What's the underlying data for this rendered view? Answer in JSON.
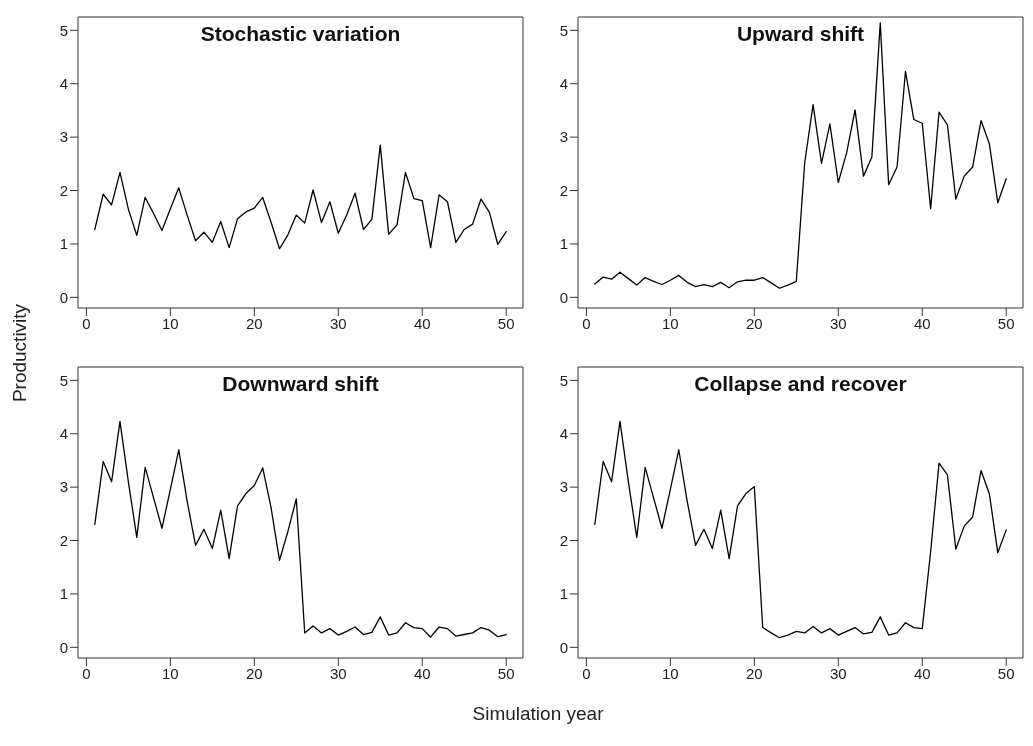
{
  "chart_data": [
    {
      "type": "line",
      "title": "Stochastic variation",
      "ylabel": "Productivity",
      "x": [
        1,
        2,
        3,
        4,
        5,
        6,
        7,
        8,
        9,
        10,
        11,
        12,
        13,
        14,
        15,
        16,
        17,
        18,
        19,
        20,
        21,
        22,
        23,
        24,
        25,
        26,
        27,
        28,
        29,
        30,
        31,
        32,
        33,
        34,
        35,
        36,
        37,
        38,
        39,
        40,
        41,
        42,
        43,
        44,
        45,
        46,
        47,
        48,
        49,
        50
      ],
      "xlim": [
        -1,
        52
      ],
      "ylim": [
        -0.2,
        5.25
      ],
      "xticks": [
        0,
        10,
        20,
        30,
        40,
        50
      ],
      "yticks": [
        0,
        1,
        2,
        3,
        4,
        5
      ],
      "marker": "none",
      "line_style": "solid",
      "series": [
        {
          "color": "#000000",
          "values": [
            1.27,
            1.93,
            1.73,
            2.34,
            1.65,
            1.16,
            1.87,
            1.57,
            1.25,
            1.66,
            2.05,
            1.54,
            1.06,
            1.22,
            1.03,
            1.42,
            0.93,
            1.47,
            1.6,
            1.67,
            1.87,
            1.4,
            0.91,
            1.17,
            1.54,
            1.39,
            2.01,
            1.4,
            1.79,
            1.2,
            1.54,
            1.95,
            1.27,
            1.46,
            2.85,
            1.18,
            1.36,
            2.34,
            1.85,
            1.81,
            0.93,
            1.92,
            1.79,
            1.03,
            1.27,
            1.37,
            1.84,
            1.59,
            0.99,
            1.23
          ]
        }
      ]
    },
    {
      "type": "line",
      "title": "Upward shift",
      "x": [
        1,
        2,
        3,
        4,
        5,
        6,
        7,
        8,
        9,
        10,
        11,
        12,
        13,
        14,
        15,
        16,
        17,
        18,
        19,
        20,
        21,
        22,
        23,
        24,
        25,
        26,
        27,
        28,
        29,
        30,
        31,
        32,
        33,
        34,
        35,
        36,
        37,
        38,
        39,
        40,
        41,
        42,
        43,
        44,
        45,
        46,
        47,
        48,
        49,
        50
      ],
      "xlim": [
        -1,
        52
      ],
      "ylim": [
        -0.2,
        5.25
      ],
      "xticks": [
        0,
        10,
        20,
        30,
        40,
        50
      ],
      "yticks": [
        0,
        1,
        2,
        3,
        4,
        5
      ],
      "marker": "none",
      "line_style": "solid",
      "series": [
        {
          "color": "#000000",
          "values": [
            0.25,
            0.38,
            0.34,
            0.47,
            0.35,
            0.23,
            0.37,
            0.3,
            0.24,
            0.32,
            0.41,
            0.28,
            0.2,
            0.24,
            0.2,
            0.28,
            0.18,
            0.29,
            0.32,
            0.32,
            0.37,
            0.27,
            0.17,
            0.23,
            0.3,
            2.52,
            3.61,
            2.51,
            3.25,
            2.15,
            2.71,
            3.51,
            2.27,
            2.63,
            5.14,
            2.11,
            2.44,
            4.23,
            3.33,
            3.26,
            1.66,
            3.47,
            3.23,
            1.84,
            2.27,
            2.44,
            3.31,
            2.87,
            1.77,
            2.22
          ]
        }
      ]
    },
    {
      "type": "line",
      "title": "Downward shift",
      "xlabel": "Simulation year",
      "x": [
        1,
        2,
        3,
        4,
        5,
        6,
        7,
        8,
        9,
        10,
        11,
        12,
        13,
        14,
        15,
        16,
        17,
        18,
        19,
        20,
        21,
        22,
        23,
        24,
        25,
        26,
        27,
        28,
        29,
        30,
        31,
        32,
        33,
        34,
        35,
        36,
        37,
        38,
        39,
        40,
        41,
        42,
        43,
        44,
        45,
        46,
        47,
        48,
        49,
        50
      ],
      "xlim": [
        -1,
        52
      ],
      "ylim": [
        -0.2,
        5.25
      ],
      "xticks": [
        0,
        10,
        20,
        30,
        40,
        50
      ],
      "yticks": [
        0,
        1,
        2,
        3,
        4,
        5
      ],
      "marker": "none",
      "line_style": "solid",
      "series": [
        {
          "color": "#000000",
          "values": [
            2.3,
            3.48,
            3.1,
            4.23,
            3.1,
            2.06,
            3.37,
            2.8,
            2.23,
            2.96,
            3.7,
            2.74,
            1.91,
            2.21,
            1.85,
            2.57,
            1.66,
            2.65,
            2.88,
            3.03,
            3.36,
            2.61,
            1.63,
            2.17,
            2.78,
            0.27,
            0.4,
            0.27,
            0.35,
            0.23,
            0.3,
            0.38,
            0.24,
            0.28,
            0.57,
            0.23,
            0.27,
            0.46,
            0.37,
            0.35,
            0.19,
            0.38,
            0.35,
            0.21,
            0.24,
            0.27,
            0.37,
            0.32,
            0.2,
            0.24
          ]
        }
      ]
    },
    {
      "type": "line",
      "title": "Collapse and recover",
      "x": [
        1,
        2,
        3,
        4,
        5,
        6,
        7,
        8,
        9,
        10,
        11,
        12,
        13,
        14,
        15,
        16,
        17,
        18,
        19,
        20,
        21,
        22,
        23,
        24,
        25,
        26,
        27,
        28,
        29,
        30,
        31,
        32,
        33,
        34,
        35,
        36,
        37,
        38,
        39,
        40,
        41,
        42,
        43,
        44,
        45,
        46,
        47,
        48,
        49,
        50
      ],
      "xlim": [
        -1,
        52
      ],
      "ylim": [
        -0.2,
        5.25
      ],
      "xticks": [
        0,
        10,
        20,
        30,
        40,
        50
      ],
      "yticks": [
        0,
        1,
        2,
        3,
        4,
        5
      ],
      "marker": "none",
      "line_style": "solid",
      "series": [
        {
          "color": "#000000",
          "values": [
            2.3,
            3.48,
            3.1,
            4.23,
            3.1,
            2.06,
            3.37,
            2.8,
            2.23,
            2.96,
            3.7,
            2.74,
            1.91,
            2.21,
            1.85,
            2.57,
            1.66,
            2.65,
            2.88,
            3.01,
            0.37,
            0.27,
            0.18,
            0.23,
            0.3,
            0.27,
            0.39,
            0.27,
            0.35,
            0.23,
            0.3,
            0.37,
            0.25,
            0.28,
            0.57,
            0.23,
            0.27,
            0.46,
            0.37,
            0.35,
            1.79,
            3.45,
            3.23,
            1.84,
            2.27,
            2.44,
            3.31,
            2.87,
            1.77,
            2.2
          ]
        }
      ]
    }
  ]
}
